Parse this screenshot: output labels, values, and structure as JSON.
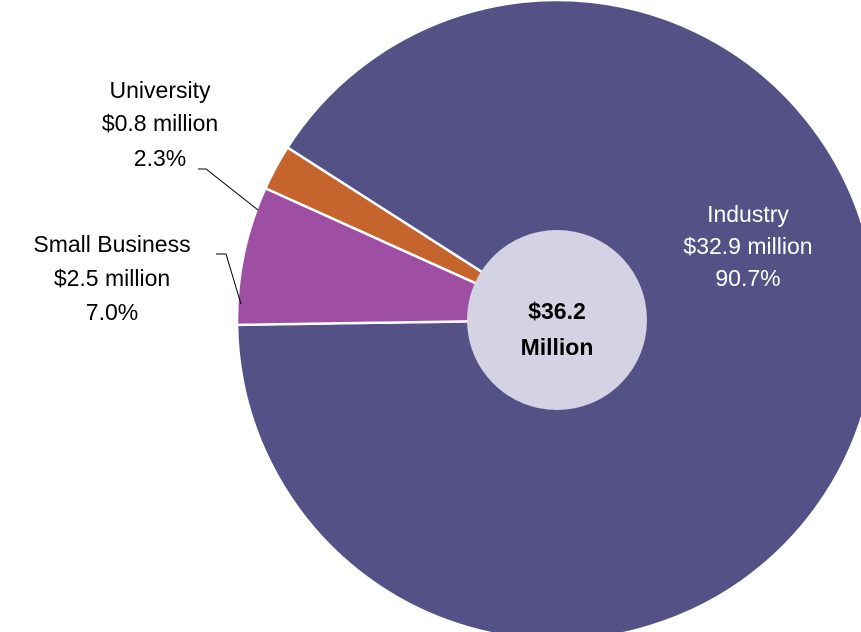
{
  "chart_data": {
    "type": "pie",
    "title": "",
    "total_label_line1": "$36.2",
    "total_label_line2": "Million",
    "slices": [
      {
        "name": "Industry",
        "value_label": "$32.9 million",
        "percent_label": "90.7%",
        "value": 32.9,
        "percent": 90.7,
        "color": "#535186"
      },
      {
        "name": "Small Business",
        "value_label": "$2.5 million",
        "percent_label": "7.0%",
        "value": 2.5,
        "percent": 7.0,
        "color": "#9e4ea3"
      },
      {
        "name": "University",
        "value_label": "$0.8 million",
        "percent_label": "2.3%",
        "value": 0.8,
        "percent": 2.3,
        "color": "#c5652d"
      }
    ],
    "center_color": "#d4d3e4",
    "start_position": "clockwise from the upper-left, Industry first",
    "legend": "none (labels placed beside slices)"
  }
}
